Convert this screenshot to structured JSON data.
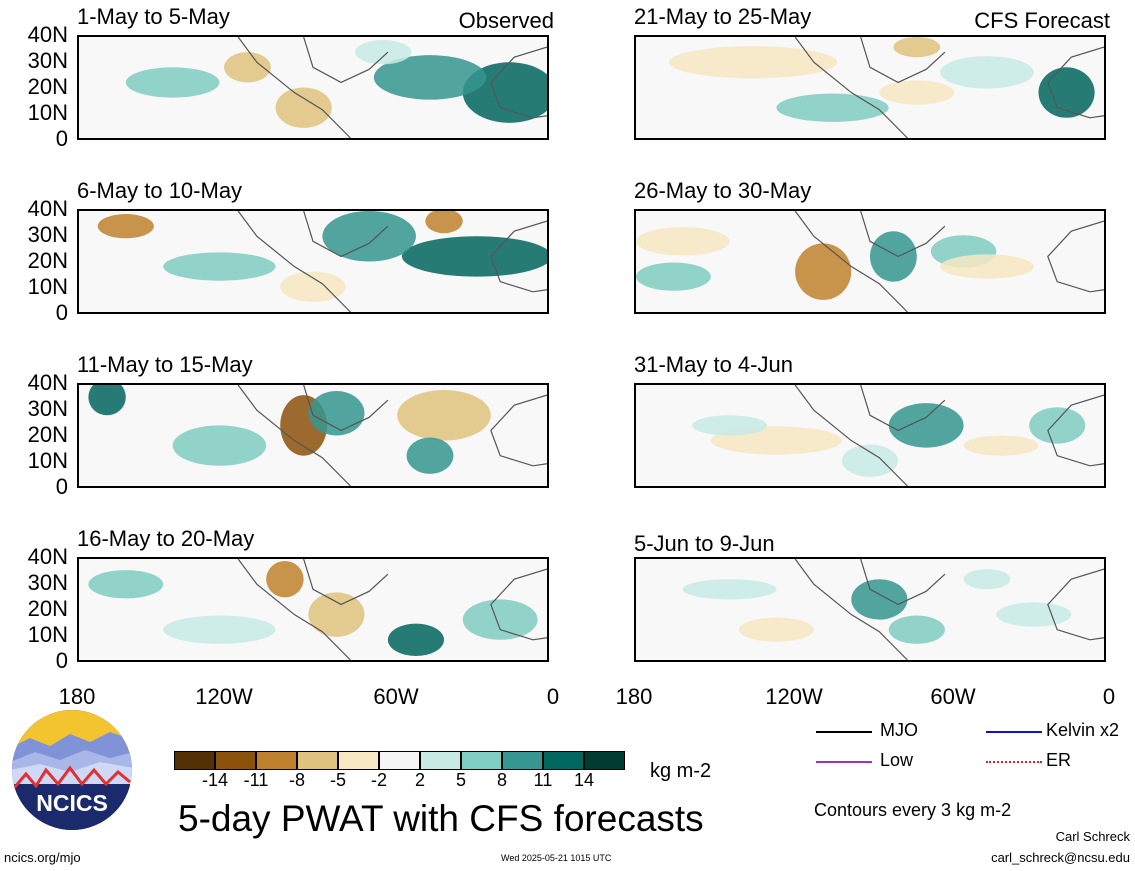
{
  "panels": [
    {
      "title": "1-May to 5-May",
      "tag": "Observed"
    },
    {
      "title": "6-May to 10-May",
      "tag": ""
    },
    {
      "title": "11-May to 15-May",
      "tag": ""
    },
    {
      "title": "16-May to 20-May",
      "tag": ""
    },
    {
      "title": "21-May to 25-May",
      "tag": "CFS Forecast"
    },
    {
      "title": "26-May to 30-May",
      "tag": ""
    },
    {
      "title": "31-May to 4-Jun",
      "tag": ""
    },
    {
      "title": "5-Jun to 9-Jun",
      "tag": ""
    }
  ],
  "lat_labels": [
    "40N",
    "30N",
    "20N",
    "10N",
    "0"
  ],
  "lon_labels": [
    "180",
    "120W",
    "60W",
    "0"
  ],
  "colorbar": {
    "colors": [
      "#543005",
      "#8c510a",
      "#bf812d",
      "#dfc27d",
      "#f6e8c3",
      "#f5f5f5",
      "#c7eae5",
      "#80cdc1",
      "#35978f",
      "#01665e",
      "#003c30"
    ],
    "ticks": [
      "-14",
      "-11",
      "-8",
      "-5",
      "-2",
      "2",
      "5",
      "8",
      "11",
      "14"
    ],
    "units": "kg m-2"
  },
  "legend": [
    {
      "label": "MJO",
      "color": "#000000"
    },
    {
      "label": "Kelvin x2",
      "color": "#1010d0"
    },
    {
      "label": "Low",
      "color": "#9933cc"
    },
    {
      "label": "ER",
      "color": "#e02020"
    }
  ],
  "main_title": "5-day PWAT with CFS forecasts",
  "contours_note": "Contours every 3 kg m-2",
  "logo_text": "NCICS",
  "website": "ncics.org/mjo",
  "timestamp": "Wed 2025-05-21 1015 UTC",
  "author": "Carl Schreck",
  "email": "carl_schreck@ncsu.edu"
}
